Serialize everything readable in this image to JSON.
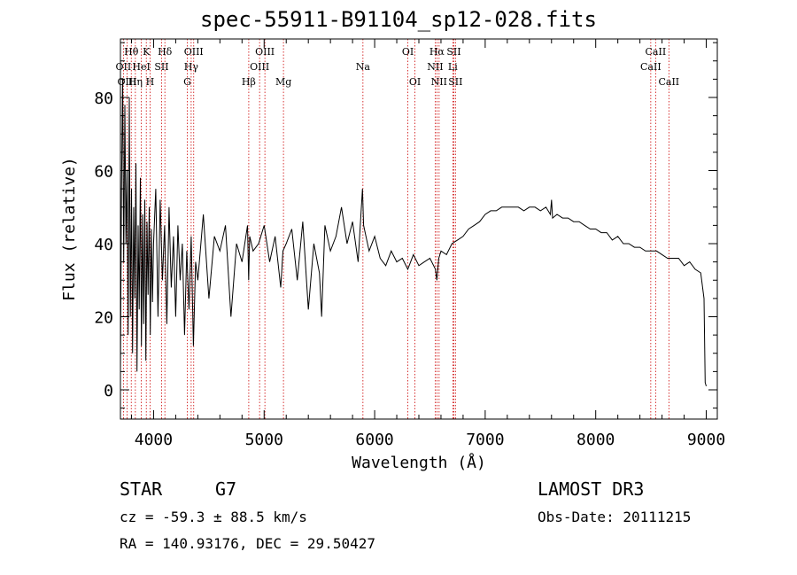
{
  "chart_data": {
    "type": "line",
    "title": "spec-55911-B91104_sp12-028.fits",
    "xlabel": "Wavelength (Å)",
    "ylabel": "Flux (relative)",
    "xlim": [
      3700,
      9100
    ],
    "ylim": [
      -8,
      96
    ],
    "xticks": [
      4000,
      5000,
      6000,
      7000,
      8000,
      9000
    ],
    "yticks": [
      0,
      20,
      40,
      60,
      80
    ],
    "grid": false,
    "series": [
      {
        "name": "flux",
        "x": [
          3700,
          3710,
          3720,
          3730,
          3740,
          3750,
          3760,
          3770,
          3780,
          3790,
          3800,
          3810,
          3820,
          3830,
          3840,
          3850,
          3860,
          3870,
          3880,
          3890,
          3900,
          3910,
          3920,
          3930,
          3940,
          3950,
          3960,
          3970,
          3980,
          3990,
          4000,
          4020,
          4040,
          4060,
          4080,
          4100,
          4120,
          4140,
          4160,
          4180,
          4200,
          4220,
          4240,
          4260,
          4280,
          4300,
          4320,
          4340,
          4360,
          4380,
          4400,
          4450,
          4500,
          4550,
          4600,
          4650,
          4700,
          4750,
          4800,
          4850,
          4860,
          4870,
          4900,
          4950,
          5000,
          5050,
          5100,
          5150,
          5170,
          5200,
          5250,
          5300,
          5350,
          5400,
          5450,
          5500,
          5520,
          5550,
          5600,
          5650,
          5700,
          5750,
          5800,
          5850,
          5890,
          5900,
          5950,
          6000,
          6050,
          6100,
          6150,
          6200,
          6250,
          6300,
          6350,
          6400,
          6450,
          6500,
          6550,
          6563,
          6580,
          6600,
          6650,
          6700,
          6750,
          6800,
          6850,
          6900,
          6950,
          7000,
          7050,
          7100,
          7150,
          7200,
          7250,
          7300,
          7350,
          7400,
          7450,
          7500,
          7550,
          7590,
          7600,
          7610,
          7650,
          7700,
          7750,
          7800,
          7850,
          7900,
          7950,
          8000,
          8050,
          8100,
          8150,
          8200,
          8250,
          8300,
          8350,
          8400,
          8450,
          8500,
          8550,
          8600,
          8650,
          8700,
          8750,
          8800,
          8850,
          8900,
          8950,
          8980,
          8990,
          9000
        ],
        "y": [
          5,
          55,
          85,
          35,
          78,
          40,
          60,
          15,
          80,
          20,
          55,
          10,
          50,
          25,
          62,
          5,
          45,
          22,
          58,
          12,
          48,
          18,
          52,
          8,
          46,
          26,
          50,
          15,
          44,
          24,
          40,
          55,
          20,
          52,
          30,
          45,
          18,
          50,
          28,
          42,
          20,
          45,
          30,
          40,
          15,
          38,
          22,
          42,
          12,
          35,
          30,
          48,
          25,
          42,
          38,
          45,
          20,
          40,
          35,
          45,
          30,
          42,
          38,
          40,
          45,
          35,
          42,
          28,
          38,
          40,
          44,
          30,
          46,
          22,
          40,
          32,
          20,
          45,
          38,
          42,
          50,
          40,
          46,
          35,
          55,
          45,
          38,
          42,
          36,
          34,
          38,
          35,
          36,
          33,
          37,
          34,
          35,
          36,
          33,
          30,
          36,
          38,
          37,
          40,
          41,
          42,
          44,
          45,
          46,
          48,
          49,
          49,
          50,
          50,
          50,
          50,
          49,
          50,
          50,
          49,
          50,
          48,
          52,
          47,
          48,
          47,
          47,
          46,
          46,
          45,
          44,
          44,
          43,
          43,
          41,
          42,
          40,
          40,
          39,
          39,
          38,
          38,
          38,
          37,
          36,
          36,
          36,
          34,
          35,
          33,
          32,
          25,
          2,
          1
        ]
      }
    ],
    "line_labels": [
      {
        "label": "Hθ",
        "wavelength": 3798,
        "row": 1
      },
      {
        "label": "OII",
        "wavelength": 3727,
        "row": 2
      },
      {
        "label": "OIII",
        "wavelength": 3760,
        "row": 3
      },
      {
        "label": "K",
        "wavelength": 3934,
        "row": 1
      },
      {
        "label": "HeI",
        "wavelength": 3889,
        "row": 2
      },
      {
        "label": "Hη",
        "wavelength": 3835,
        "row": 3
      },
      {
        "label": "Hδ",
        "wavelength": 4102,
        "row": 1
      },
      {
        "label": "SII",
        "wavelength": 4072,
        "row": 2
      },
      {
        "label": "H",
        "wavelength": 3968,
        "row": 3
      },
      {
        "label": "OIII",
        "wavelength": 4363,
        "row": 1
      },
      {
        "label": "Hγ",
        "wavelength": 4340,
        "row": 2
      },
      {
        "label": "G",
        "wavelength": 4305,
        "row": 3
      },
      {
        "label": "OIII",
        "wavelength": 5007,
        "row": 1
      },
      {
        "label": "OIII",
        "wavelength": 4959,
        "row": 2
      },
      {
        "label": "Hβ",
        "wavelength": 4861,
        "row": 3
      },
      {
        "label": "Mg",
        "wavelength": 5175,
        "row": 3
      },
      {
        "label": "Na",
        "wavelength": 5894,
        "row": 2
      },
      {
        "label": "OI",
        "wavelength": 6300,
        "row": 1
      },
      {
        "label": "OI",
        "wavelength": 6364,
        "row": 3
      },
      {
        "label": "Hα",
        "wavelength": 6563,
        "row": 1
      },
      {
        "label": "SII",
        "wavelength": 6716,
        "row": 1
      },
      {
        "label": "NII",
        "wavelength": 6548,
        "row": 2
      },
      {
        "label": "Li",
        "wavelength": 6707,
        "row": 2
      },
      {
        "label": "NII",
        "wavelength": 6583,
        "row": 3
      },
      {
        "label": "SII",
        "wavelength": 6731,
        "row": 3
      },
      {
        "label": "CaII",
        "wavelength": 8542,
        "row": 1
      },
      {
        "label": "CaII",
        "wavelength": 8498,
        "row": 2
      },
      {
        "label": "CaII",
        "wavelength": 8662,
        "row": 3
      }
    ],
    "line_color": "#000000",
    "marker_color": "#cc0000"
  },
  "info": {
    "object_class": "STAR",
    "subclass": "G7",
    "redshift": "cz = -59.3 ± 88.5 km/s",
    "coords": "RA = 140.93176, DEC =  29.50427",
    "survey": "LAMOST DR3",
    "obs_date": "Obs-Date: 20111215"
  }
}
